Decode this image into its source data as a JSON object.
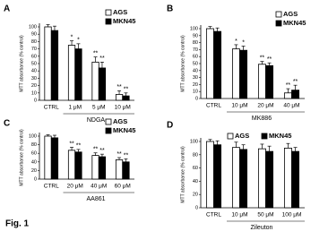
{
  "figure_label": "Fig. 1",
  "chart_data": [
    {
      "type": "bar",
      "panel_label": "A",
      "xlabel": "NDGA",
      "ylabel": "MTT absorbance (% control)",
      "categories": [
        "CTRL",
        "1 μM",
        "5 μM",
        "10 μM"
      ],
      "series": [
        {
          "name": "AGS",
          "color": "#ffffff",
          "values": [
            100,
            75,
            52,
            8
          ],
          "errors": [
            3,
            6,
            7,
            5
          ],
          "significance": [
            null,
            "*",
            "**",
            "**"
          ]
        },
        {
          "name": "MKN45",
          "color": "#000000",
          "values": [
            95,
            70,
            44,
            6
          ],
          "errors": [
            6,
            7,
            8,
            4
          ],
          "significance": [
            null,
            "*",
            "**",
            "**"
          ]
        }
      ],
      "ylim": [
        0,
        100
      ],
      "yticks": [
        0,
        10,
        20,
        30,
        40,
        50,
        60,
        70,
        80,
        90,
        100
      ],
      "legend": "upper right",
      "legend_layout": "vertical"
    },
    {
      "type": "bar",
      "panel_label": "B",
      "xlabel": "MK886",
      "ylabel": "MTT absorbance (% control)",
      "categories": [
        "CTRL",
        "10 μM",
        "20 μM",
        "40 μM"
      ],
      "series": [
        {
          "name": "AGS",
          "color": "#ffffff",
          "values": [
            100,
            71,
            49,
            8
          ],
          "errors": [
            3,
            6,
            4,
            6
          ],
          "significance": [
            null,
            "*",
            "**",
            "**"
          ]
        },
        {
          "name": "MKN45",
          "color": "#000000",
          "values": [
            96,
            69,
            47,
            12
          ],
          "errors": [
            5,
            6,
            4,
            7
          ],
          "significance": [
            null,
            "*",
            "**",
            "**"
          ]
        }
      ],
      "ylim": [
        0,
        100
      ],
      "yticks": [
        0,
        10,
        20,
        30,
        40,
        50,
        60,
        70,
        80,
        90,
        100
      ],
      "legend": "upper right",
      "legend_layout": "vertical"
    },
    {
      "type": "bar",
      "panel_label": "C",
      "xlabel": "AA861",
      "ylabel": "MTT absorbance (% control)",
      "categories": [
        "CTRL",
        "20 μM",
        "40 μM",
        "60 μM"
      ],
      "series": [
        {
          "name": "AGS",
          "color": "#ffffff",
          "values": [
            100,
            67,
            55,
            45
          ],
          "errors": [
            3,
            7,
            6,
            5
          ],
          "significance": [
            null,
            "**",
            "**",
            "**"
          ]
        },
        {
          "name": "MKN45",
          "color": "#000000",
          "values": [
            96,
            63,
            52,
            40
          ],
          "errors": [
            6,
            6,
            6,
            7
          ],
          "significance": [
            null,
            "**",
            "**",
            "**"
          ]
        }
      ],
      "ylim": [
        0,
        100
      ],
      "yticks": [
        0,
        20,
        40,
        60,
        80,
        100
      ],
      "legend": "upper right",
      "legend_layout": "vertical"
    },
    {
      "type": "bar",
      "panel_label": "D",
      "xlabel": "Zileuton",
      "ylabel": "MTT absorbance (% control)",
      "categories": [
        "CTRL",
        "10 μM",
        "50 μM",
        "100 μM"
      ],
      "series": [
        {
          "name": "AGS",
          "color": "#ffffff",
          "values": [
            100,
            91,
            89,
            90
          ],
          "errors": [
            3,
            8,
            7,
            7
          ],
          "significance": [
            null,
            null,
            null,
            null
          ]
        },
        {
          "name": "MKN45",
          "color": "#000000",
          "values": [
            95,
            88,
            85,
            85
          ],
          "errors": [
            6,
            7,
            8,
            6
          ],
          "significance": [
            null,
            null,
            null,
            null
          ]
        }
      ],
      "ylim": [
        0,
        100
      ],
      "yticks": [
        0,
        20,
        40,
        60,
        80,
        100
      ],
      "legend": "top",
      "legend_layout": "horizontal"
    }
  ]
}
